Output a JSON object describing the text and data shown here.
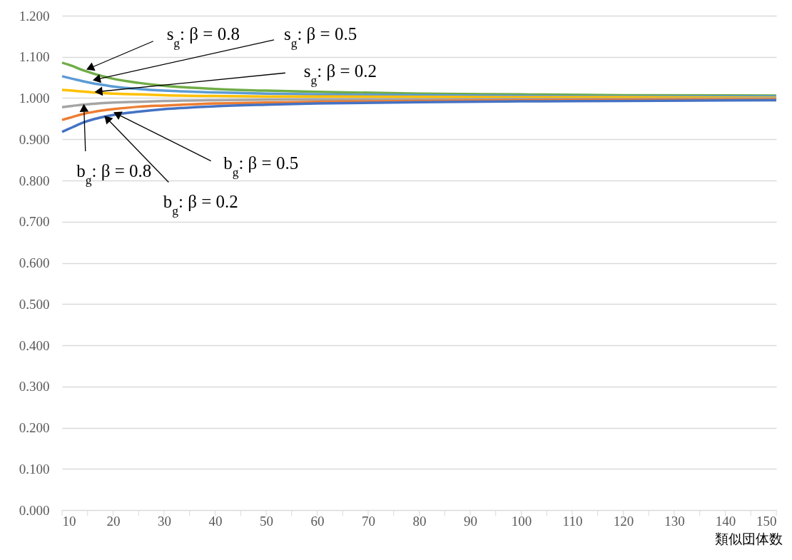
{
  "chart_data": {
    "type": "line",
    "xlabel": "類似団体数",
    "x": [
      10,
      12,
      14,
      16,
      18,
      20,
      25,
      30,
      40,
      50,
      60,
      80,
      100,
      120,
      150
    ],
    "series": [
      {
        "color": "#70ad47",
        "values": [
          1.086,
          1.078,
          1.068,
          1.06,
          1.053,
          1.047,
          1.037,
          1.03,
          1.022,
          1.018,
          1.015,
          1.011,
          1.009,
          1.007,
          1.006
        ]
      },
      {
        "color": "#5b9bd5",
        "values": [
          1.053,
          1.047,
          1.041,
          1.036,
          1.032,
          1.028,
          1.022,
          1.018,
          1.014,
          1.011,
          1.009,
          1.007,
          1.005,
          1.004,
          1.004
        ]
      },
      {
        "color": "#ffc000",
        "values": [
          1.02,
          1.018,
          1.016,
          1.014,
          1.012,
          1.011,
          1.009,
          1.007,
          1.005,
          1.004,
          1.004,
          1.003,
          1.002,
          1.002,
          1.001
        ]
      },
      {
        "color": "#a5a5a5",
        "values": [
          0.978,
          0.981,
          0.984,
          0.986,
          0.988,
          0.989,
          0.991,
          0.993,
          0.995,
          0.996,
          0.997,
          0.997,
          0.998,
          0.998,
          0.999
        ]
      },
      {
        "color": "#ed7d31",
        "values": [
          0.947,
          0.954,
          0.961,
          0.966,
          0.97,
          0.973,
          0.979,
          0.982,
          0.987,
          0.989,
          0.991,
          0.993,
          0.995,
          0.996,
          0.997
        ]
      },
      {
        "color": "#4472c4",
        "values": [
          0.918,
          0.929,
          0.94,
          0.948,
          0.954,
          0.959,
          0.967,
          0.973,
          0.98,
          0.984,
          0.987,
          0.99,
          0.992,
          0.993,
          0.995
        ]
      }
    ],
    "annotations": [
      {
        "text": "s$_{g}$: β = 0.8",
        "x": 15.7,
        "y": 1.074
      },
      {
        "text": "s$_{g}$: β = 0.5",
        "x": 17,
        "y": 1.046
      },
      {
        "text": "s$_{g}$: β = 0.2",
        "x": 17.4,
        "y": 1.016
      },
      {
        "text": "b$_{g}$: β = 0.8",
        "x": 14.3,
        "y": 0.973
      },
      {
        "text": "b$_{g}$: β = 0.5",
        "x": 21,
        "y": 0.96
      },
      {
        "text": "b$_{g}$: β = 0.2",
        "x": 19,
        "y": 0.948
      }
    ],
    "xlim": [
      10,
      150
    ],
    "xticks": [
      10,
      {
        "value": 15,
        "label": null
      },
      20,
      {
        "value": 25,
        "label": null
      },
      30,
      {
        "value": 35,
        "label": null
      },
      40,
      {
        "value": 45,
        "label": null
      },
      50,
      {
        "value": 55,
        "label": null
      },
      60,
      {
        "value": 65,
        "label": null
      },
      70,
      {
        "value": 75,
        "label": null
      },
      80,
      {
        "value": 85,
        "label": null
      },
      90,
      {
        "value": 95,
        "label": null
      },
      100,
      {
        "value": 105,
        "label": null
      },
      110,
      {
        "value": 115,
        "label": null
      },
      120,
      {
        "value": 125,
        "label": null
      },
      130,
      {
        "value": 135,
        "label": null
      },
      140,
      {
        "value": 145,
        "label": null
      },
      150
    ],
    "ylim": [
      0,
      1.2
    ],
    "yticks": [
      {
        "value": 0,
        "label": "0.000"
      },
      {
        "value": 0.1,
        "label": "0.100"
      },
      {
        "value": 0.2,
        "label": "0.200"
      },
      {
        "value": 0.3,
        "label": "0.300"
      },
      {
        "value": 0.4,
        "label": "0.400"
      },
      {
        "value": 0.5,
        "label": "0.500"
      },
      {
        "value": 0.6,
        "label": "0.600"
      },
      {
        "value": 0.7,
        "label": "0.700"
      },
      {
        "value": 0.8,
        "label": "0.800"
      },
      {
        "value": 0.9,
        "label": "0.900"
      },
      {
        "value": 1,
        "label": "1.000"
      },
      {
        "value": 1.1,
        "label": "1.100"
      },
      {
        "value": 1.2,
        "label": "1.200"
      }
    ],
    "grid": "y",
    "legend": false,
    "marker": "none",
    "line_style": "solid"
  }
}
